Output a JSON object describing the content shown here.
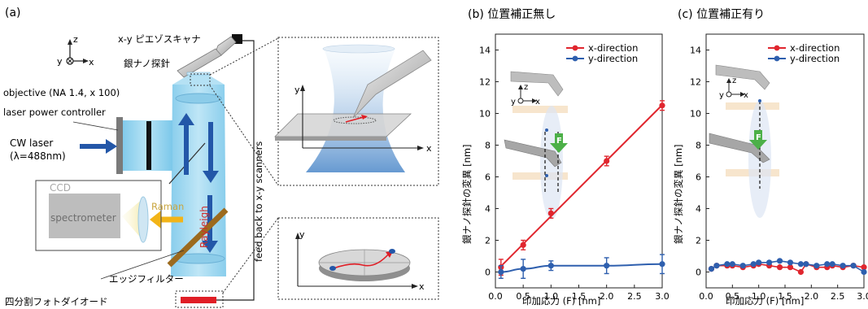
{
  "panel_a": {
    "label": "(a)",
    "axes_z": "z",
    "axes_y": "y",
    "axes_x": "x",
    "scanner": "x-y ピエゾスキャナ",
    "tip": "銀ナノ探針",
    "objective": "objective (NA 1.4, x 100)",
    "laser_power": "laser power controller",
    "cw_laser_1": "CW laser",
    "cw_laser_2": "(λ=488nm)",
    "ccd": "CCD",
    "spectrometer": "spectrometer",
    "raman": "Raman",
    "rayleigh": "Rayleigh",
    "feedback": "feed back to x-y scanners",
    "edge_filter": "エッジフィルター",
    "photodiode": "四分割フォトダイオード",
    "inset_y1": "y",
    "inset_x1": "x",
    "inset_y2": "y",
    "inset_x2": "x"
  },
  "chart_data": [
    {
      "type": "line",
      "title": "(b) 位置補正無し",
      "xlabel": "印加応力 (F) [nm]",
      "ylabel": "銀ナノ探針の変異 [nm]",
      "xlim": [
        0,
        3.0
      ],
      "ylim": [
        -1,
        15
      ],
      "xticks": [
        "0.0",
        "0.5",
        "1.0",
        "1.5",
        "2.0",
        "2.5",
        "3.0"
      ],
      "yticks": [
        "0",
        "2",
        "4",
        "6",
        "8",
        "10",
        "12",
        "14"
      ],
      "legend_position": "top-right",
      "inset": {
        "y": "y",
        "z": "z",
        "x": "x",
        "force": "F"
      },
      "series": [
        {
          "name": "x-direction",
          "color": "#e0262e",
          "x": [
            0.1,
            0.5,
            1.0,
            2.0,
            3.0
          ],
          "y": [
            0.3,
            1.7,
            3.7,
            7.0,
            10.5
          ],
          "err": [
            0.5,
            0.3,
            0.3,
            0.3,
            0.3
          ],
          "fit": "line"
        },
        {
          "name": "y-direction",
          "color": "#2e5fae",
          "x": [
            0.1,
            0.5,
            1.0,
            2.0,
            3.0
          ],
          "y": [
            0.0,
            0.2,
            0.4,
            0.4,
            0.5
          ],
          "err": [
            0.4,
            0.6,
            0.3,
            0.5,
            0.6
          ],
          "fit": "curve"
        }
      ]
    },
    {
      "type": "line",
      "title": "(c) 位置補正有り",
      "xlabel": "印加応力 (F) [nm]",
      "ylabel": "銀ナノ探針の変異 [nm]",
      "xlim": [
        0,
        3.0
      ],
      "ylim": [
        -1,
        15
      ],
      "xticks": [
        "0.0",
        "0.5",
        "1.0",
        "1.5",
        "2.0",
        "2.5",
        "3.0"
      ],
      "yticks": [
        "0",
        "2",
        "4",
        "6",
        "8",
        "10",
        "12",
        "14"
      ],
      "legend_position": "top-right",
      "inset": {
        "y": "y",
        "z": "z",
        "x": "x",
        "force": "F"
      },
      "series": [
        {
          "name": "x-direction",
          "color": "#e0262e",
          "x": [
            0.1,
            0.2,
            0.4,
            0.5,
            0.7,
            0.9,
            1.0,
            1.2,
            1.4,
            1.6,
            1.8,
            1.9,
            2.1,
            2.3,
            2.4,
            2.6,
            2.8,
            3.0
          ],
          "y": [
            0.2,
            0.4,
            0.4,
            0.4,
            0.3,
            0.4,
            0.5,
            0.4,
            0.3,
            0.3,
            0.0,
            0.5,
            0.3,
            0.3,
            0.4,
            0.3,
            0.4,
            0.3
          ]
        },
        {
          "name": "y-direction",
          "color": "#2e5fae",
          "x": [
            0.1,
            0.2,
            0.4,
            0.5,
            0.7,
            0.9,
            1.0,
            1.2,
            1.4,
            1.6,
            1.8,
            1.9,
            2.1,
            2.3,
            2.4,
            2.6,
            2.8,
            3.0
          ],
          "y": [
            0.2,
            0.4,
            0.5,
            0.5,
            0.4,
            0.5,
            0.6,
            0.6,
            0.7,
            0.6,
            0.5,
            0.5,
            0.4,
            0.5,
            0.5,
            0.4,
            0.4,
            0.0
          ]
        }
      ]
    }
  ]
}
